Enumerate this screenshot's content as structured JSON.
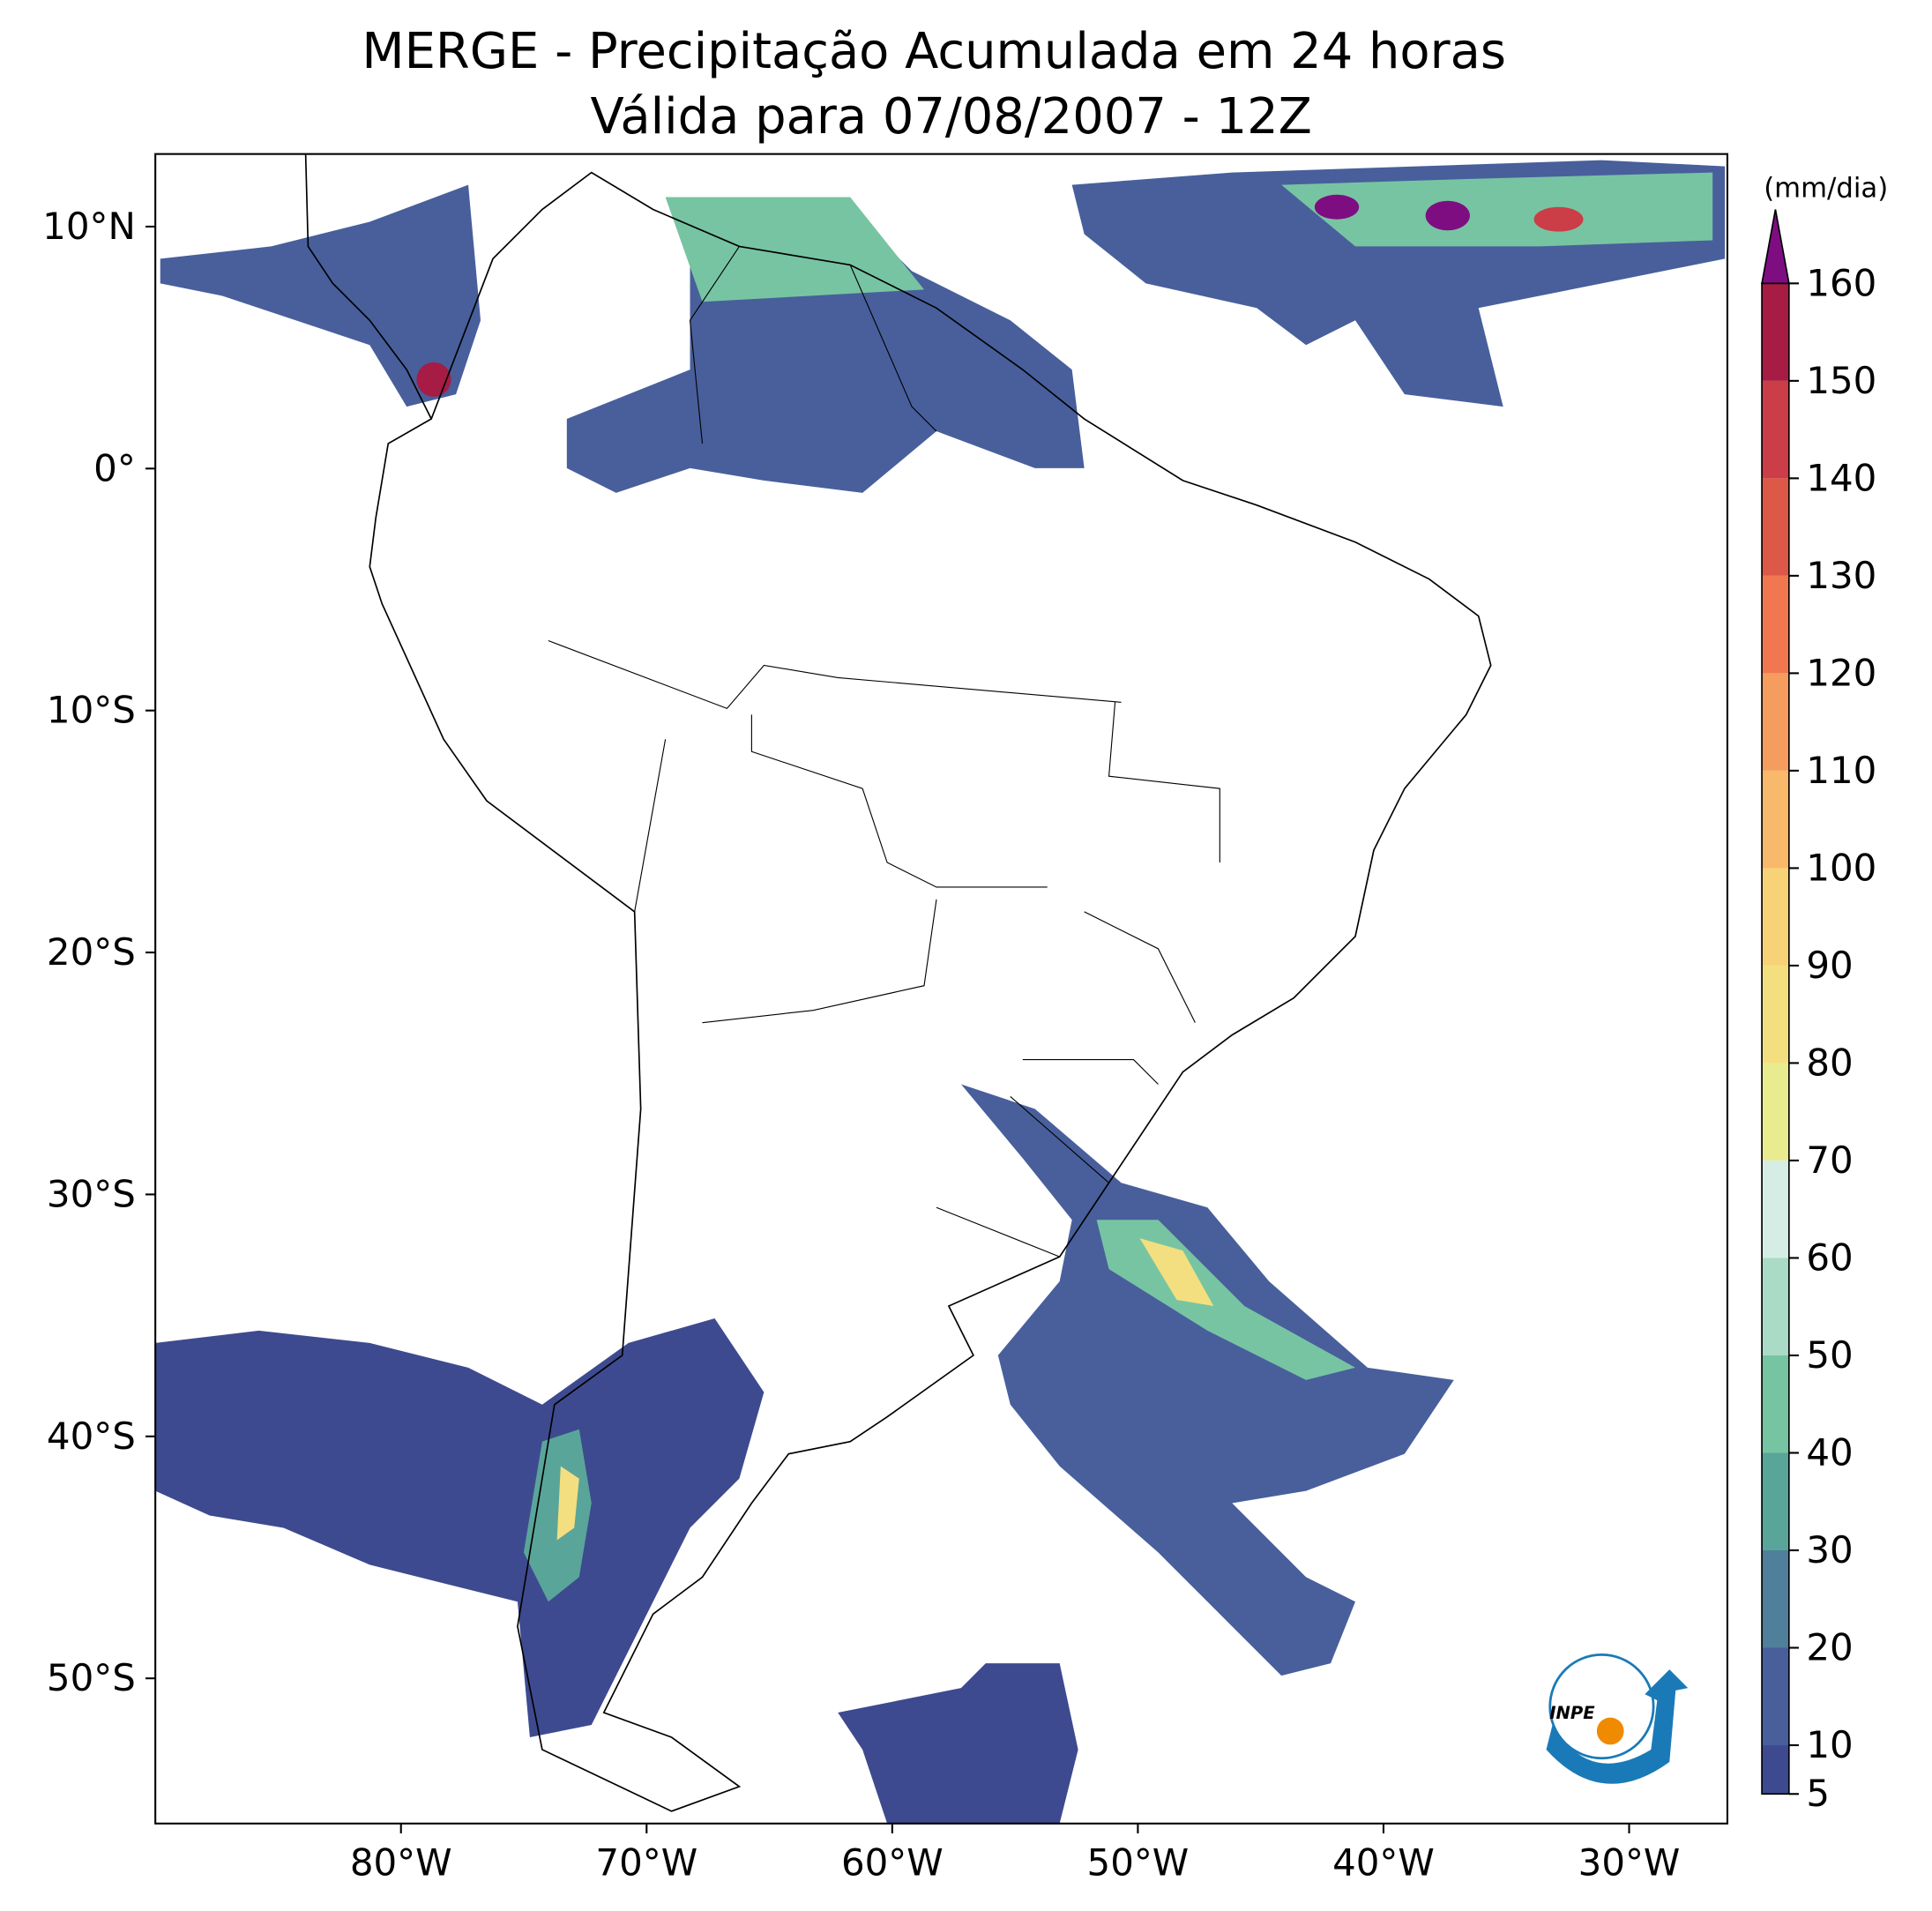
{
  "title": "MERGE - Precipitação Acumulada em 24 horas",
  "subtitle": "Válida para 07/08/2007 - 12Z",
  "map": {
    "xlim": [
      -90,
      -26
    ],
    "ylim": [
      -56,
      13
    ],
    "xticks": [
      {
        "value": -80,
        "label": "80°W"
      },
      {
        "value": -70,
        "label": "70°W"
      },
      {
        "value": -60,
        "label": "60°W"
      },
      {
        "value": -50,
        "label": "50°W"
      },
      {
        "value": -40,
        "label": "40°W"
      },
      {
        "value": -30,
        "label": "30°W"
      }
    ],
    "yticks": [
      {
        "value": 10,
        "label": "10°N"
      },
      {
        "value": 0,
        "label": "0°"
      },
      {
        "value": -10,
        "label": "10°S"
      },
      {
        "value": -20,
        "label": "20°S"
      },
      {
        "value": -30,
        "label": "30°S"
      },
      {
        "value": -40,
        "label": "40°S"
      },
      {
        "value": -50,
        "label": "50°S"
      }
    ]
  },
  "colorbar": {
    "label": "(mm/dia)",
    "lim": [
      5,
      160
    ],
    "ticks": [
      5,
      10,
      20,
      30,
      40,
      50,
      60,
      70,
      80,
      90,
      100,
      110,
      120,
      130,
      140,
      150,
      160
    ],
    "colors": [
      "#3e4a8f",
      "#485f9c",
      "#4f7f9a",
      "#5aa59a",
      "#77c4a2",
      "#a9dbc6",
      "#d6ede5",
      "#e9ec8e",
      "#f3df7f",
      "#f8d277",
      "#f8b96a",
      "#f59d5f",
      "#f0774f",
      "#dc5847",
      "#cb3d47",
      "#a61c45"
    ],
    "extend_color": "#7f0d82"
  },
  "logo": "INPE"
}
